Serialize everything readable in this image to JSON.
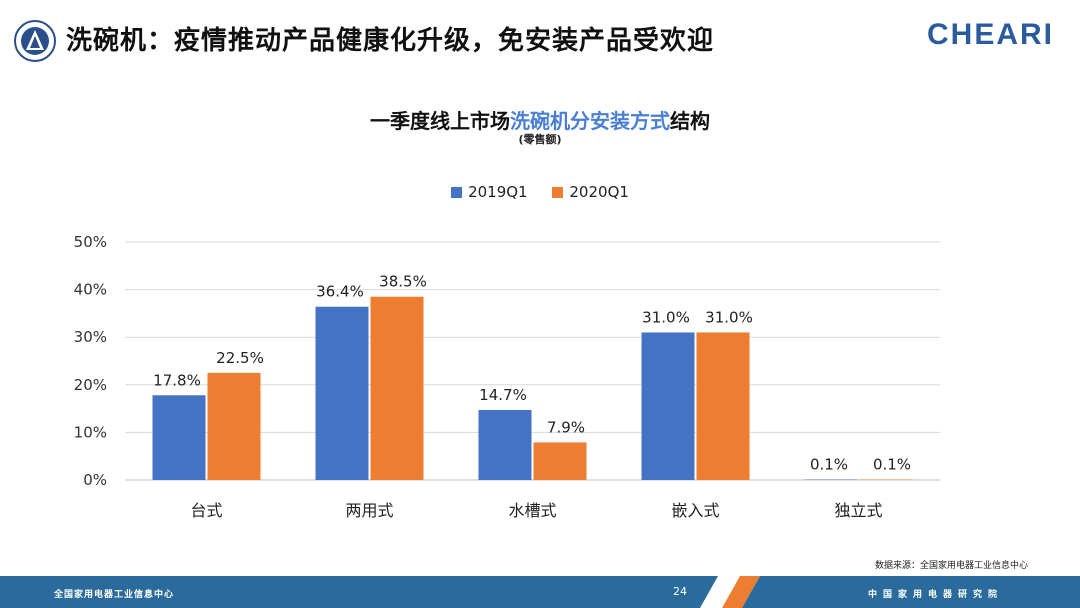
{
  "header": {
    "title": "洗碗机：疫情推动产品健康化升级，免安装产品受欢迎",
    "logo": "CHEARI"
  },
  "chart_data": {
    "type": "bar",
    "title_prefix": "一季度线上市场",
    "title_highlight": "洗碗机分安装方式",
    "title_suffix": "结构",
    "subtitle": "(零售额)",
    "categories": [
      "台式",
      "两用式",
      "水槽式",
      "嵌入式",
      "独立式"
    ],
    "series": [
      {
        "name": "2019Q1",
        "color": "#4472c4",
        "values": [
          17.8,
          36.4,
          14.7,
          31.0,
          0.1
        ],
        "labels": [
          "17.8%",
          "36.4%",
          "14.7%",
          "31.0%",
          "0.1%"
        ]
      },
      {
        "name": "2020Q1",
        "color": "#ed7d31",
        "values": [
          22.5,
          38.5,
          7.9,
          31.0,
          0.1
        ],
        "labels": [
          "22.5%",
          "38.5%",
          "7.9%",
          "31.0%",
          "0.1%"
        ]
      }
    ],
    "yticks": [
      "0%",
      "10%",
      "20%",
      "30%",
      "40%",
      "50%"
    ],
    "ylim": [
      0,
      50
    ],
    "grid": true,
    "legend_position": "top-center"
  },
  "source": "数据来源：全国家用电器工业信息中心",
  "footer": {
    "left": "全国家用电器工业信息中心",
    "page": "24",
    "right": "中国家用电器研究院"
  },
  "colors": {
    "footer_blue": "#2a6b9c",
    "footer_orange": "#ed7d31",
    "accent": "#4a7fd4"
  }
}
